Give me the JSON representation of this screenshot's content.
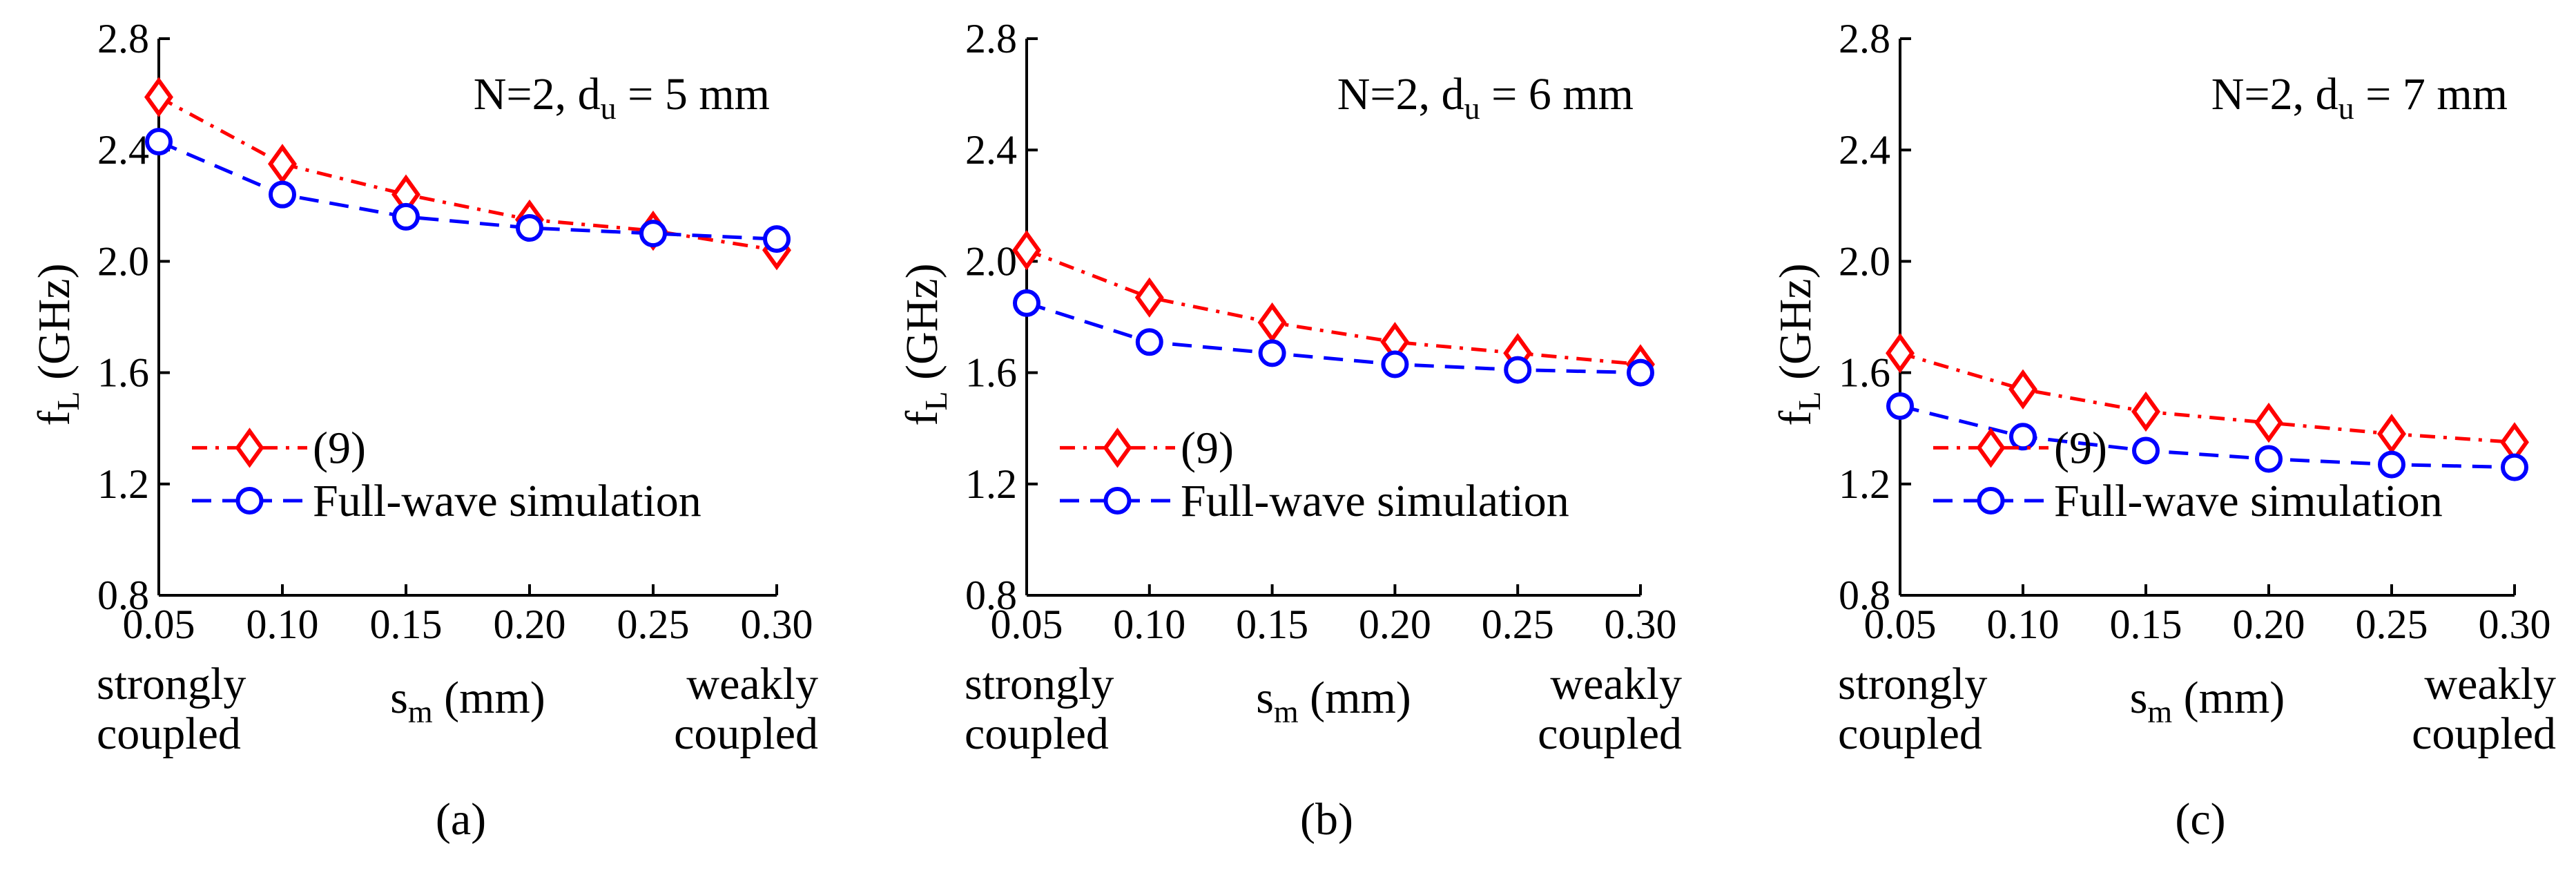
{
  "colors": {
    "eq9": "#ff0000",
    "sim": "#0000ff",
    "axis": "#000000"
  },
  "chart_data": [
    {
      "type": "line",
      "panel_label": "(a)",
      "annotation": {
        "prefix": "N=2, d",
        "sub": "u",
        "suffix": " = 5 mm"
      },
      "ylabel": {
        "main": "f",
        "sub": "L",
        "suffix": " (GHz)"
      },
      "xlabel": {
        "main": "s",
        "sub": "m",
        "suffix": " (mm)"
      },
      "x_extremes": {
        "left": [
          "strongly",
          "coupled"
        ],
        "right": [
          "weakly",
          "coupled"
        ]
      },
      "xlim": [
        0.05,
        0.3
      ],
      "ylim": [
        0.8,
        2.8
      ],
      "x_ticks": [
        "0.05",
        "0.10",
        "0.15",
        "0.20",
        "0.25",
        "0.30"
      ],
      "y_ticks": [
        "0.8",
        "1.2",
        "1.6",
        "2.0",
        "2.4",
        "2.8"
      ],
      "legend_position": "bottom-left",
      "x": [
        0.05,
        0.1,
        0.15,
        0.2,
        0.25,
        0.3
      ],
      "series": [
        {
          "name": "(9)",
          "marker": "diamond",
          "line": "dashdot",
          "values": [
            2.59,
            2.35,
            2.24,
            2.15,
            2.11,
            2.04
          ]
        },
        {
          "name": "Full-wave simulation",
          "marker": "circle",
          "line": "dashed",
          "values": [
            2.43,
            2.24,
            2.16,
            2.12,
            2.1,
            2.08
          ]
        }
      ]
    },
    {
      "type": "line",
      "panel_label": "(b)",
      "annotation": {
        "prefix": "N=2, d",
        "sub": "u",
        "suffix": " = 6 mm"
      },
      "ylabel": {
        "main": "f",
        "sub": "L",
        "suffix": " (GHz)"
      },
      "xlabel": {
        "main": "s",
        "sub": "m",
        "suffix": " (mm)"
      },
      "x_extremes": {
        "left": [
          "strongly",
          "coupled"
        ],
        "right": [
          "weakly",
          "coupled"
        ]
      },
      "xlim": [
        0.05,
        0.3
      ],
      "ylim": [
        0.8,
        2.8
      ],
      "x_ticks": [
        "0.05",
        "0.10",
        "0.15",
        "0.20",
        "0.25",
        "0.30"
      ],
      "y_ticks": [
        "0.8",
        "1.2",
        "1.6",
        "2.0",
        "2.4",
        "2.8"
      ],
      "legend_position": "bottom-left",
      "x": [
        0.05,
        0.1,
        0.15,
        0.2,
        0.25,
        0.3
      ],
      "series": [
        {
          "name": "(9)",
          "marker": "diamond",
          "line": "dashdot",
          "values": [
            2.04,
            1.87,
            1.78,
            1.71,
            1.67,
            1.63
          ]
        },
        {
          "name": "Full-wave simulation",
          "marker": "circle",
          "line": "dashed",
          "values": [
            1.85,
            1.71,
            1.67,
            1.63,
            1.61,
            1.6
          ]
        }
      ]
    },
    {
      "type": "line",
      "panel_label": "(c)",
      "annotation": {
        "prefix": "N=2, d",
        "sub": "u",
        "suffix": " = 7 mm"
      },
      "ylabel": {
        "main": "f",
        "sub": "L",
        "suffix": " (GHz)"
      },
      "xlabel": {
        "main": "s",
        "sub": "m",
        "suffix": " (mm)"
      },
      "x_extremes": {
        "left": [
          "strongly",
          "coupled"
        ],
        "right": [
          "weakly",
          "coupled"
        ]
      },
      "xlim": [
        0.05,
        0.3
      ],
      "ylim": [
        0.8,
        2.8
      ],
      "x_ticks": [
        "0.05",
        "0.10",
        "0.15",
        "0.20",
        "0.25",
        "0.30"
      ],
      "y_ticks": [
        "0.8",
        "1.2",
        "1.6",
        "2.0",
        "2.4",
        "2.8"
      ],
      "legend_position": "bottom-left",
      "x": [
        0.05,
        0.1,
        0.15,
        0.2,
        0.25,
        0.3
      ],
      "series": [
        {
          "name": "(9)",
          "marker": "diamond",
          "line": "dashdot",
          "values": [
            1.67,
            1.54,
            1.46,
            1.42,
            1.38,
            1.35
          ]
        },
        {
          "name": "Full-wave simulation",
          "marker": "circle",
          "line": "dashed",
          "values": [
            1.48,
            1.37,
            1.32,
            1.29,
            1.27,
            1.26
          ]
        }
      ]
    }
  ]
}
